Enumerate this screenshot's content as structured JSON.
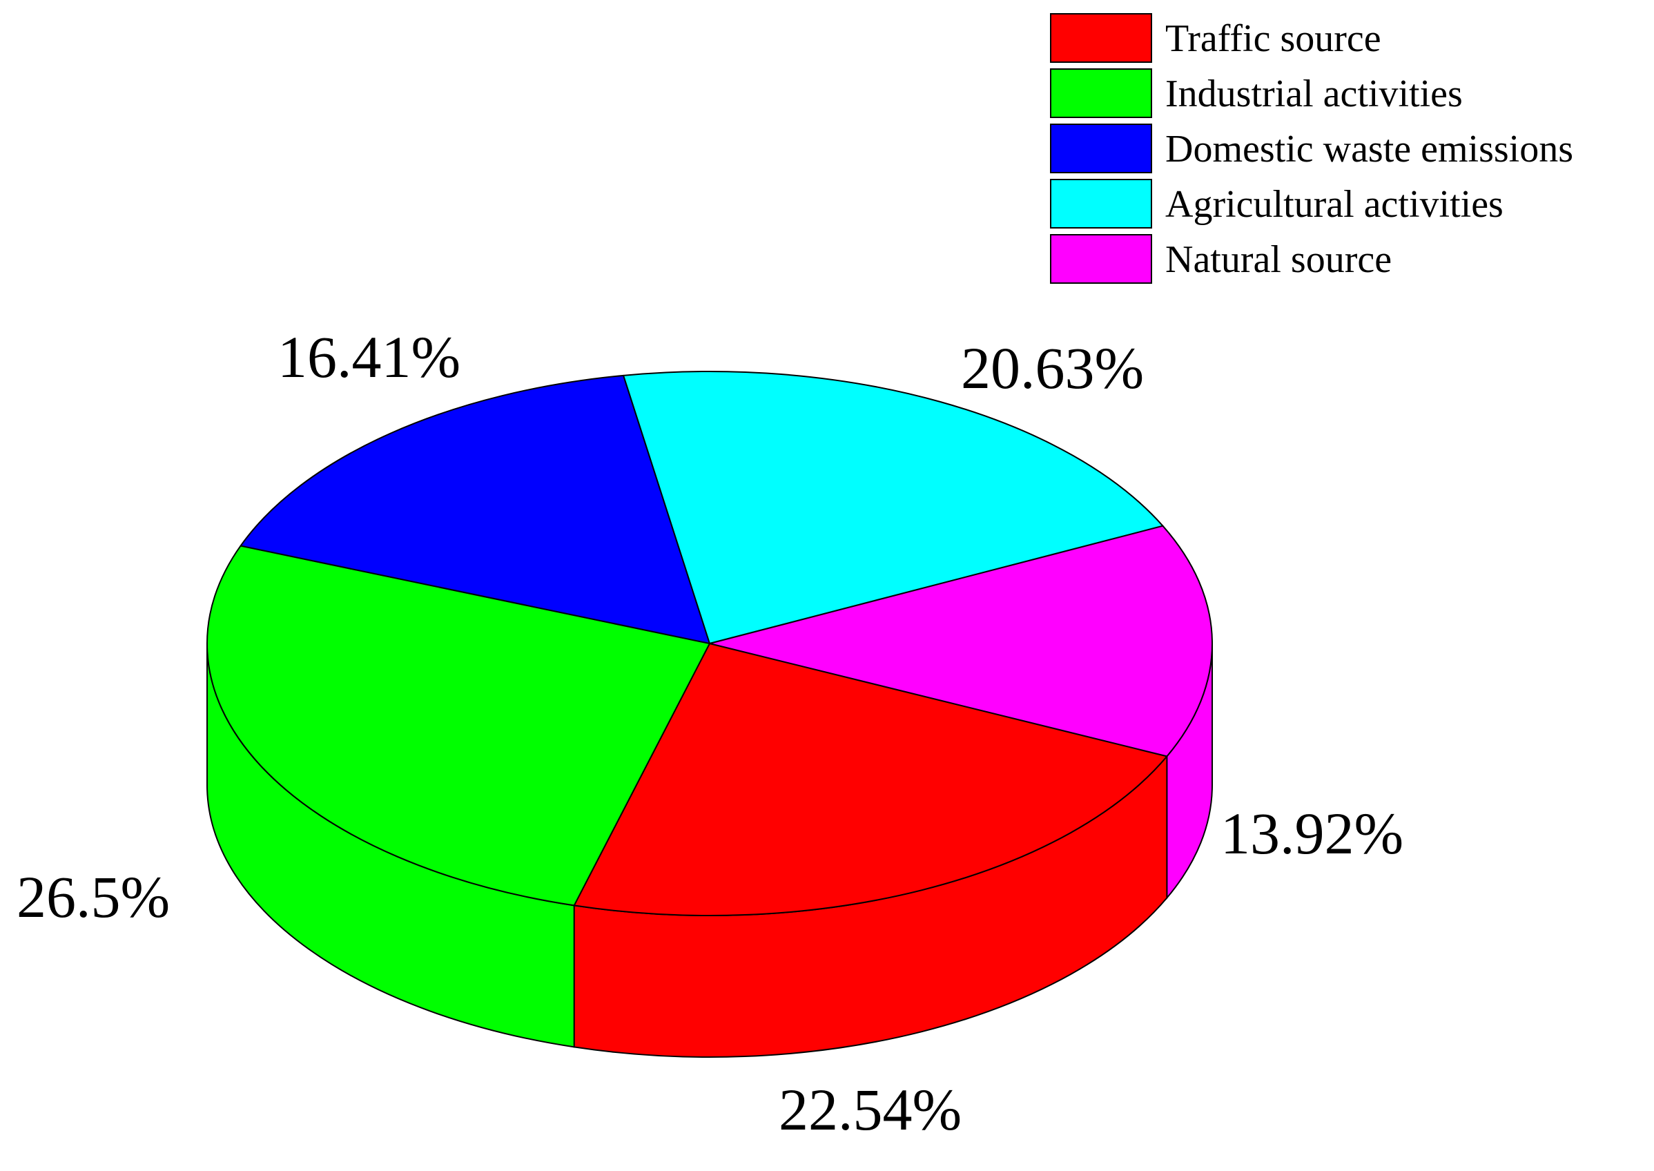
{
  "chart_data": {
    "type": "pie",
    "style": "3d",
    "legend_position": "top-right",
    "series": [
      {
        "categories": [
          "Traffic source",
          "Industrial activities",
          "Domestic waste emissions",
          "Agricultural activities",
          "Natural source"
        ],
        "values": [
          22.54,
          26.5,
          16.41,
          20.63,
          13.92
        ],
        "labels": [
          "22.54%",
          "26.5%",
          "16.41%",
          "20.63%",
          "13.92%"
        ],
        "colors": [
          "#ff0000",
          "#00ff00",
          "#0000ff",
          "#00ffff",
          "#ff00ff"
        ]
      }
    ]
  }
}
